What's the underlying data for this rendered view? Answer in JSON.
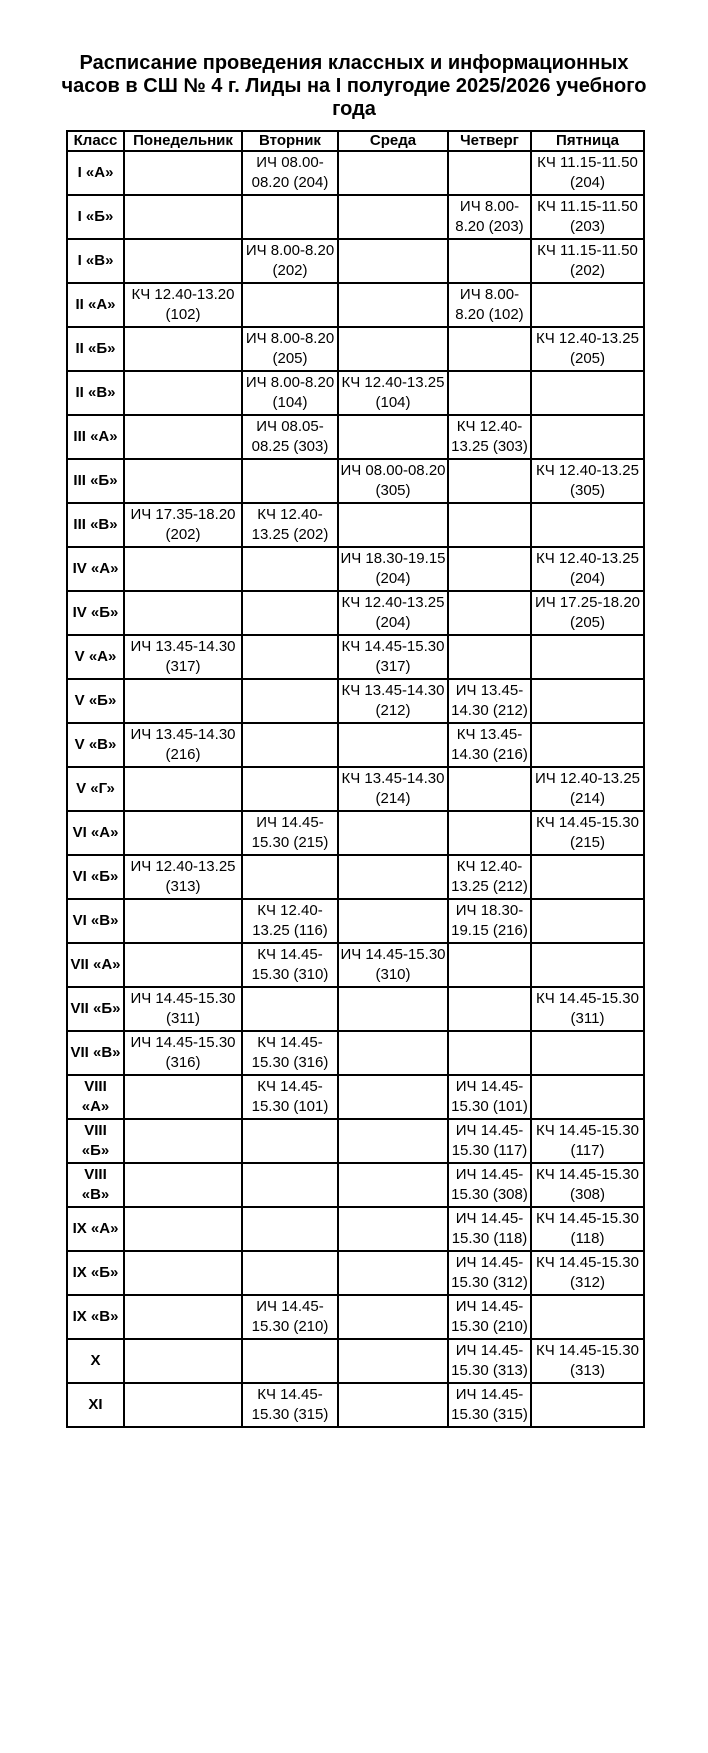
{
  "title": "Расписание проведения классных и информационных часов в СШ № 4 г. Лиды на I полугодие 2025/2026 учебного года",
  "columns": [
    "Класс",
    "Понедельник",
    "Вторник",
    "Среда",
    "Четверг",
    "Пятница"
  ],
  "rows": [
    {
      "class": "I «А»",
      "cells": [
        "",
        "ИЧ 08.00-08.20 (204)",
        "",
        "",
        "КЧ 11.15-11.50 (204)"
      ]
    },
    {
      "class": "I «Б»",
      "cells": [
        "",
        "",
        "",
        "ИЧ 8.00-8.20 (203)",
        "КЧ 11.15-11.50 (203)"
      ]
    },
    {
      "class": "I «В»",
      "cells": [
        "",
        "ИЧ 8.00-8.20 (202)",
        "",
        "",
        "КЧ 11.15-11.50 (202)"
      ]
    },
    {
      "class": "II «А»",
      "cells": [
        "КЧ 12.40-13.20 (102)",
        "",
        "",
        "ИЧ 8.00-8.20 (102)",
        ""
      ]
    },
    {
      "class": "II «Б»",
      "cells": [
        "",
        "ИЧ 8.00-8.20 (205)",
        "",
        "",
        "КЧ 12.40-13.25 (205)"
      ]
    },
    {
      "class": "II «В»",
      "cells": [
        "",
        "ИЧ 8.00-8.20 (104)",
        "КЧ 12.40-13.25 (104)",
        "",
        ""
      ]
    },
    {
      "class": "III «А»",
      "cells": [
        "",
        "ИЧ 08.05-08.25 (303)",
        "",
        "КЧ 12.40-13.25 (303)",
        ""
      ]
    },
    {
      "class": "III «Б»",
      "cells": [
        "",
        "",
        "ИЧ 08.00-08.20 (305)",
        "",
        "КЧ 12.40-13.25 (305)"
      ]
    },
    {
      "class": "III «В»",
      "cells": [
        "ИЧ 17.35-18.20 (202)",
        "КЧ 12.40-13.25 (202)",
        "",
        "",
        ""
      ]
    },
    {
      "class": "IV «А»",
      "cells": [
        "",
        "",
        "ИЧ 18.30-19.15 (204)",
        "",
        "КЧ 12.40-13.25 (204)"
      ]
    },
    {
      "class": "IV «Б»",
      "cells": [
        "",
        "",
        "КЧ 12.40-13.25 (204)",
        "",
        "ИЧ 17.25-18.20 (205)"
      ]
    },
    {
      "class": "V «А»",
      "cells": [
        "ИЧ 13.45-14.30 (317)",
        "",
        "КЧ 14.45-15.30 (317)",
        "",
        ""
      ]
    },
    {
      "class": "V «Б»",
      "cells": [
        "",
        "",
        "КЧ 13.45-14.30 (212)",
        "ИЧ 13.45-14.30 (212)",
        ""
      ]
    },
    {
      "class": "V «В»",
      "cells": [
        "ИЧ 13.45-14.30 (216)",
        "",
        "",
        "КЧ 13.45-14.30 (216)",
        ""
      ]
    },
    {
      "class": "V «Г»",
      "cells": [
        "",
        "",
        "КЧ 13.45-14.30 (214)",
        "",
        "ИЧ 12.40-13.25 (214)"
      ]
    },
    {
      "class": "VI «А»",
      "cells": [
        "",
        "ИЧ 14.45-15.30 (215)",
        "",
        "",
        "КЧ 14.45-15.30 (215)"
      ]
    },
    {
      "class": "VI «Б»",
      "cells": [
        "ИЧ 12.40-13.25 (313)",
        "",
        "",
        "КЧ 12.40-13.25 (212)",
        ""
      ]
    },
    {
      "class": "VI «В»",
      "cells": [
        "",
        "КЧ 12.40-13.25 (116)",
        "",
        "ИЧ 18.30-19.15 (216)",
        ""
      ]
    },
    {
      "class": "VII «А»",
      "cells": [
        "",
        "КЧ 14.45-15.30 (310)",
        "ИЧ 14.45-15.30 (310)",
        "",
        ""
      ]
    },
    {
      "class": "VII «Б»",
      "cells": [
        "ИЧ 14.45-15.30 (311)",
        "",
        "",
        "",
        "КЧ 14.45-15.30 (311)"
      ]
    },
    {
      "class": "VII «В»",
      "cells": [
        "ИЧ 14.45-15.30 (316)",
        "КЧ 14.45-15.30 (316)",
        "",
        "",
        ""
      ]
    },
    {
      "class": "VIII «А»",
      "cells": [
        "",
        "КЧ 14.45-15.30 (101)",
        "",
        "ИЧ 14.45-15.30 (101)",
        ""
      ]
    },
    {
      "class": "VIII «Б»",
      "cells": [
        "",
        "",
        "",
        "ИЧ 14.45-15.30 (117)",
        "КЧ 14.45-15.30 (117)"
      ]
    },
    {
      "class": "VIII «В»",
      "cells": [
        "",
        "",
        "",
        "ИЧ 14.45-15.30 (308)",
        "КЧ 14.45-15.30 (308)"
      ]
    },
    {
      "class": "IX «А»",
      "cells": [
        "",
        "",
        "",
        "ИЧ 14.45-15.30 (118)",
        "КЧ 14.45-15.30 (118)"
      ]
    },
    {
      "class": "IX «Б»",
      "cells": [
        "",
        "",
        "",
        "ИЧ 14.45-15.30 (312)",
        "КЧ 14.45-15.30 (312)"
      ]
    },
    {
      "class": "IX «В»",
      "cells": [
        "",
        "ИЧ 14.45-15.30 (210)",
        "",
        "ИЧ 14.45-15.30 (210)",
        ""
      ]
    },
    {
      "class": "X",
      "cells": [
        "",
        "",
        "",
        "ИЧ 14.45-15.30 (313)",
        "КЧ 14.45-15.30 (313)"
      ]
    },
    {
      "class": "XI",
      "cells": [
        "",
        "КЧ 14.45-15.30 (315)",
        "",
        "ИЧ 14.45-15.30 (315)",
        ""
      ]
    }
  ]
}
